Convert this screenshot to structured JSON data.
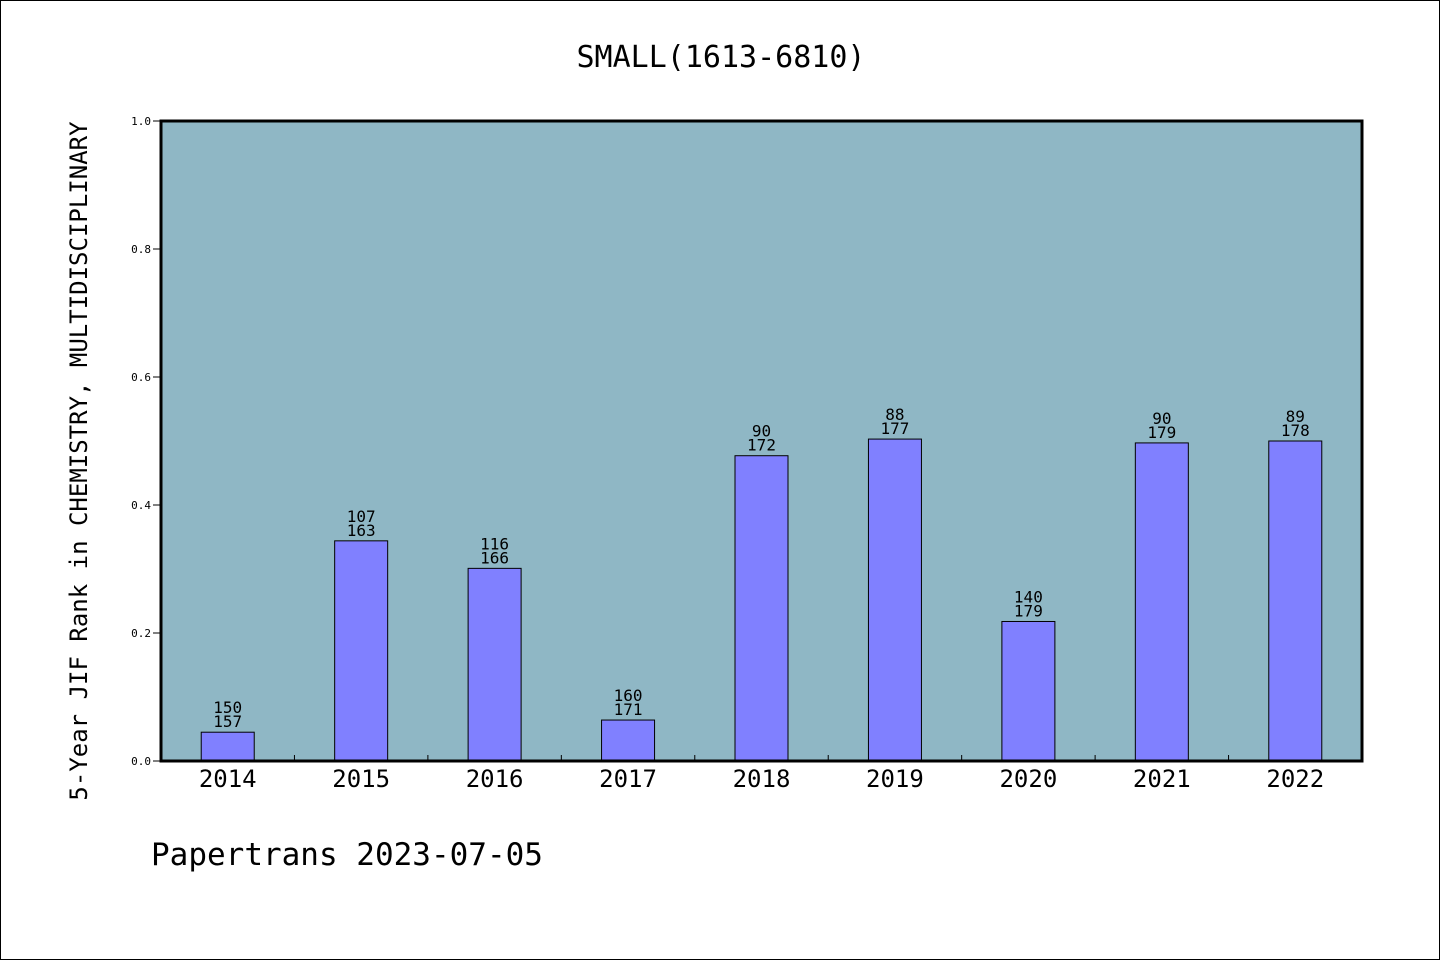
{
  "footer": "Papertrans 2023-07-05",
  "colors": {
    "plot_background": "#8fb7c5",
    "bar_fill": "#8080ff",
    "bar_stroke": "#000000",
    "page_background": "#ffffff"
  },
  "chart_data": {
    "type": "bar",
    "title": "SMALL(1613-6810)",
    "xlabel": "",
    "ylabel": "5-Year JIF Rank in CHEMISTRY, MULTIDISCIPLINARY",
    "ylim": [
      0,
      1.0
    ],
    "yticks": [
      "0.0",
      "0.2",
      "0.4",
      "0.6",
      "0.8",
      "1.0"
    ],
    "grid": false,
    "categories": [
      "2014",
      "2015",
      "2016",
      "2017",
      "2018",
      "2019",
      "2020",
      "2021",
      "2022"
    ],
    "values": [
      0.045,
      0.344,
      0.301,
      0.064,
      0.477,
      0.503,
      0.218,
      0.497,
      0.5
    ],
    "rank": [
      "150",
      "107",
      "116",
      "160",
      "90",
      "88",
      "140",
      "90",
      "89"
    ],
    "total": [
      "157",
      "163",
      "166",
      "171",
      "172",
      "177",
      "179",
      "179",
      "178"
    ]
  }
}
